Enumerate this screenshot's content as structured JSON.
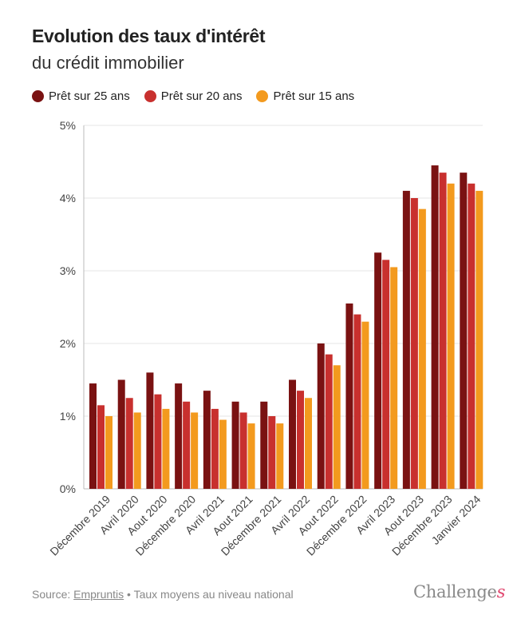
{
  "header": {
    "title": "Evolution des taux d'intérêt",
    "subtitle": "du crédit immobilier"
  },
  "chart_data": {
    "type": "bar",
    "title": "Evolution des taux d'intérêt du crédit immobilier",
    "ylabel": "",
    "xlabel": "",
    "ylim": [
      0,
      5
    ],
    "yticks": [
      "0%",
      "1%",
      "2%",
      "3%",
      "4%",
      "5%"
    ],
    "grid": true,
    "legend_position": "top-left",
    "categories": [
      "Décembre 2019",
      "Avril 2020",
      "Aout 2020",
      "Décembre 2020",
      "Avril 2021",
      "Aout 2021",
      "Décembre 2021",
      "Avril 2022",
      "Aout 2022",
      "Décembre 2022",
      "Avril 2023",
      "Aout 2023",
      "Décembre 2023",
      "Janvier 2024"
    ],
    "series": [
      {
        "name": "Prêt sur 25 ans",
        "color": "#7a1212",
        "values": [
          1.45,
          1.5,
          1.6,
          1.45,
          1.35,
          1.2,
          1.2,
          1.5,
          2.0,
          2.55,
          3.25,
          4.1,
          4.45,
          4.35
        ]
      },
      {
        "name": "Prêt sur 20 ans",
        "color": "#c8302e",
        "values": [
          1.15,
          1.25,
          1.3,
          1.2,
          1.1,
          1.05,
          1.0,
          1.35,
          1.85,
          2.4,
          3.15,
          4.0,
          4.35,
          4.2
        ]
      },
      {
        "name": "Prêt sur 15 ans",
        "color": "#f39a1e",
        "values": [
          1.0,
          1.05,
          1.1,
          1.05,
          0.95,
          0.9,
          0.9,
          1.25,
          1.7,
          2.3,
          3.05,
          3.85,
          4.2,
          4.1
        ]
      }
    ]
  },
  "footer": {
    "source_prefix": "Source: ",
    "source_link": "Empruntis",
    "source_suffix": " • Taux moyens au niveau national",
    "brand_main": "Challenge",
    "brand_accent": "s"
  }
}
